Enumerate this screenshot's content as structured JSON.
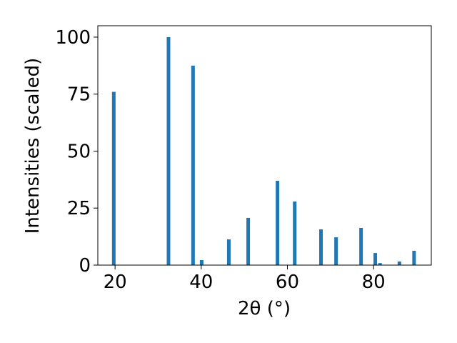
{
  "chart_data": {
    "type": "bar",
    "x": [
      19.7,
      32.4,
      38.1,
      40.1,
      46.4,
      50.9,
      57.7,
      61.7,
      67.8,
      71.3,
      77.1,
      80.4,
      81.5,
      86.0,
      89.4
    ],
    "values": [
      76,
      100,
      87.5,
      2.2,
      11.3,
      20.7,
      37,
      27.9,
      15.7,
      12.2,
      16.3,
      5.3,
      0.9,
      1.6,
      6.3
    ],
    "color": "#1f77b4",
    "xlabel": "2θ (°)",
    "ylabel": "Intensities (scaled)",
    "xlim": [
      16.0,
      93.4
    ],
    "ylim": [
      0,
      105
    ],
    "xticks": [
      20,
      40,
      60,
      80
    ],
    "yticks": [
      0,
      25,
      50,
      75,
      100
    ],
    "grid": false
  }
}
